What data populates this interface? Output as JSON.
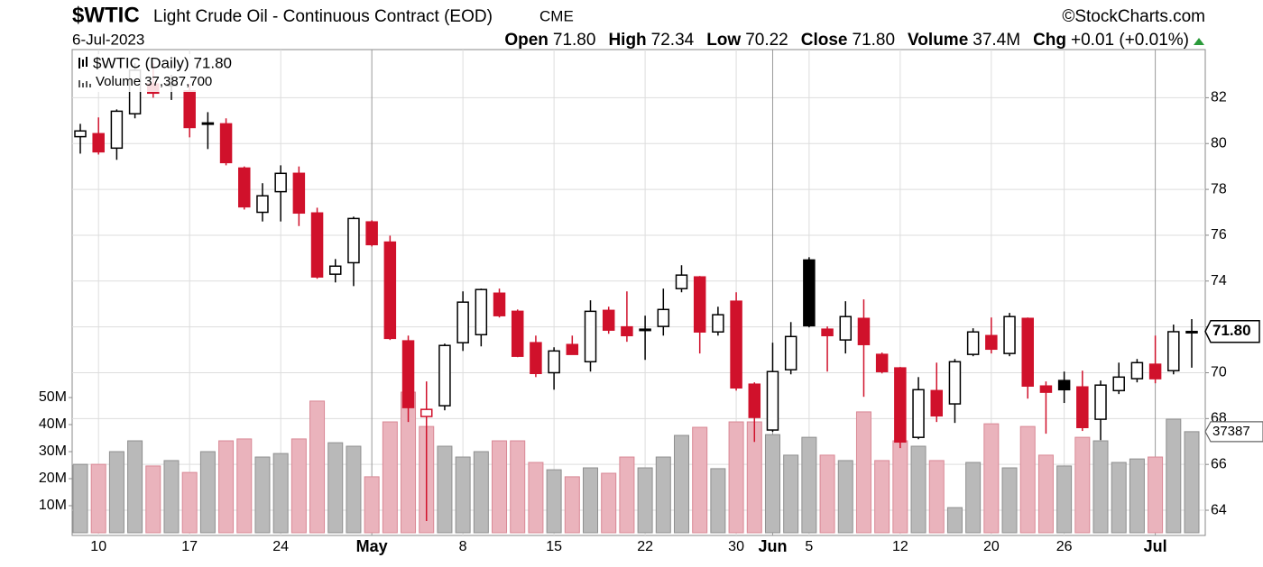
{
  "chart_data": {
    "type": "candlestick",
    "title": "$WTIC",
    "subtitle": "Light Crude Oil - Continuous Contract (EOD)",
    "exchange": "CME",
    "credit": "©StockCharts.com",
    "date": "6-Jul-2023",
    "stats": [
      {
        "label": "Open",
        "value": "71.80"
      },
      {
        "label": "High",
        "value": "72.34"
      },
      {
        "label": "Low",
        "value": "70.22"
      },
      {
        "label": "Close",
        "value": "71.80"
      },
      {
        "label": "Volume",
        "value": "37.4M"
      },
      {
        "label": "Chg",
        "value": "+0.01 (+0.01%)"
      }
    ],
    "legend": [
      "$WTIC (Daily) 71.80",
      "Volume 37,387,700"
    ],
    "price_marker": "71.80",
    "volume_marker": "37387",
    "categories": [
      null,
      "10",
      null,
      null,
      null,
      null,
      "17",
      null,
      null,
      null,
      null,
      "24",
      null,
      null,
      null,
      null,
      "May",
      null,
      null,
      null,
      null,
      "8",
      null,
      null,
      null,
      null,
      "15",
      null,
      null,
      null,
      null,
      "22",
      null,
      null,
      null,
      null,
      "30",
      null,
      "Jun",
      null,
      "5",
      null,
      null,
      null,
      null,
      "12",
      null,
      null,
      null,
      null,
      "20",
      null,
      null,
      null,
      "26",
      null,
      null,
      null,
      null,
      "Jul",
      null,
      null
    ],
    "series": {
      "open": [
        80.3,
        80.43,
        79.8,
        81.3,
        82.6,
        82.6,
        82.3,
        80.9,
        80.86,
        78.93,
        77.0,
        77.9,
        78.7,
        76.97,
        74.3,
        74.8,
        76.58,
        75.7,
        71.39,
        68.09,
        68.56,
        71.31,
        71.66,
        73.47,
        72.68,
        71.31,
        70.0,
        71.23,
        70.48,
        72.72,
        72.0,
        71.9,
        72.02,
        73.67,
        74.18,
        71.78,
        73.12,
        69.5,
        67.5,
        70.13,
        74.92,
        71.9,
        71.43,
        72.37,
        70.8,
        70.21,
        67.18,
        69.22,
        68.64,
        70.8,
        71.62,
        70.84,
        72.37,
        69.42,
        69.66,
        69.38,
        67.97,
        69.22,
        69.74,
        70.37,
        70.09,
        71.8
      ],
      "high": [
        80.86,
        81.14,
        81.49,
        83.5,
        83.5,
        83.0,
        82.6,
        81.37,
        81.1,
        79.0,
        78.27,
        79.05,
        79.0,
        77.2,
        74.96,
        76.81,
        76.65,
        75.98,
        71.62,
        69.62,
        71.27,
        73.55,
        73.67,
        73.67,
        72.76,
        71.62,
        71.11,
        71.62,
        73.16,
        72.88,
        73.55,
        72.49,
        73.67,
        74.69,
        74.22,
        72.88,
        73.51,
        69.58,
        71.31,
        72.21,
        75.04,
        72.02,
        73.12,
        73.2,
        70.88,
        70.25,
        69.81,
        70.44,
        70.6,
        71.94,
        72.41,
        72.61,
        72.41,
        69.62,
        70.05,
        70.09,
        69.66,
        70.44,
        70.6,
        71.62,
        72.1,
        72.34
      ],
      "low": [
        79.56,
        79.52,
        79.29,
        81.1,
        82.0,
        81.9,
        80.27,
        79.76,
        79.05,
        77.12,
        76.6,
        76.6,
        76.4,
        74.1,
        73.94,
        73.78,
        75.51,
        71.43,
        67.85,
        63.53,
        68.36,
        70.95,
        71.15,
        72.41,
        70.68,
        69.81,
        69.26,
        70.8,
        70.05,
        71.7,
        71.35,
        70.56,
        71.62,
        73.51,
        70.84,
        71.62,
        69.22,
        66.98,
        67.42,
        69.93,
        71.98,
        70.05,
        70.84,
        68.95,
        69.97,
        66.71,
        67.1,
        67.85,
        67.81,
        70.72,
        70.84,
        70.72,
        68.87,
        67.34,
        68.68,
        67.46,
        67.06,
        69.07,
        69.58,
        69.54,
        69.93,
        70.22
      ],
      "close": [
        80.55,
        79.64,
        81.41,
        83.2,
        82.2,
        82.52,
        80.7,
        80.86,
        79.17,
        77.24,
        77.72,
        78.7,
        76.97,
        74.18,
        74.65,
        76.73,
        75.59,
        71.5,
        68.48,
        68.4,
        71.19,
        73.08,
        73.63,
        72.49,
        70.72,
        69.97,
        70.95,
        70.8,
        72.68,
        71.86,
        71.62,
        71.86,
        72.76,
        74.26,
        71.78,
        72.53,
        69.34,
        68.05,
        70.05,
        71.58,
        72.05,
        71.62,
        72.45,
        71.23,
        70.05,
        66.98,
        69.26,
        68.12,
        70.48,
        71.78,
        71.03,
        72.45,
        69.42,
        69.15,
        69.26,
        67.61,
        69.46,
        69.81,
        70.44,
        69.74,
        71.79,
        71.8
      ],
      "volume": [
        25.3,
        25.3,
        30,
        34,
        24.7,
        26.7,
        22.3,
        30,
        34,
        34.7,
        28,
        29.3,
        34.7,
        48.7,
        33.3,
        32,
        20.7,
        41,
        52,
        39.3,
        32,
        28,
        30,
        34,
        34,
        26,
        23.3,
        20.7,
        24,
        22,
        28,
        24,
        28,
        36,
        39,
        23.7,
        41,
        41,
        36.3,
        28.7,
        35.3,
        28.7,
        26.7,
        44.7,
        26.7,
        34,
        32,
        26.7,
        9.3,
        26,
        40.3,
        24,
        39.3,
        28.7,
        24.7,
        35.3,
        34,
        26,
        27.3,
        28,
        42,
        37.3877
      ]
    },
    "colors": {
      "up": "#000000",
      "down": "#d0112b",
      "volume_up": "#b9b9b9",
      "volume_down": "#eab3bc"
    },
    "ylim": [
      62.9,
      84.1
    ],
    "yticks": [
      64,
      66,
      68,
      70,
      72,
      74,
      76,
      78,
      80,
      82
    ],
    "y2lim": [
      -1,
      178.7
    ],
    "y2ticks": [
      {
        "value": 10,
        "label": "10M"
      },
      {
        "value": 20,
        "label": "20M"
      },
      {
        "value": 30,
        "label": "30M"
      },
      {
        "value": 40,
        "label": "40M"
      },
      {
        "value": 50,
        "label": "50M"
      }
    ],
    "grid": true
  }
}
